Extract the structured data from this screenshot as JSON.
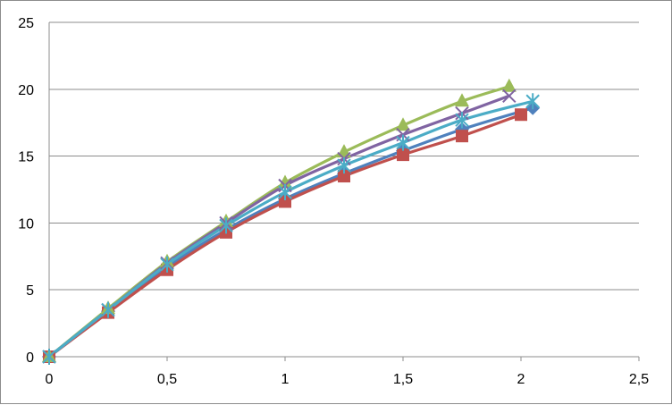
{
  "chart_data": {
    "type": "line",
    "title": "",
    "xlabel": "",
    "ylabel": "",
    "xlim": [
      0,
      2.5
    ],
    "ylim": [
      0,
      25
    ],
    "x_ticks": [
      "0",
      "0,5",
      "1",
      "1,5",
      "2",
      "2,5"
    ],
    "y_ticks": [
      "0",
      "5",
      "10",
      "15",
      "20",
      "25"
    ],
    "grid": "horizontal",
    "legend": "none",
    "series": [
      {
        "marker": "diamond",
        "color": "#4f81bd",
        "points": [
          [
            0,
            0
          ],
          [
            0.25,
            3.4
          ],
          [
            0.5,
            6.7
          ],
          [
            0.75,
            9.5
          ],
          [
            1,
            11.8
          ],
          [
            1.25,
            13.7
          ],
          [
            1.5,
            15.4
          ],
          [
            1.75,
            17.0
          ],
          [
            2.05,
            18.6
          ]
        ]
      },
      {
        "marker": "square",
        "color": "#c0504d",
        "points": [
          [
            0,
            0
          ],
          [
            0.25,
            3.3
          ],
          [
            0.5,
            6.5
          ],
          [
            0.75,
            9.3
          ],
          [
            1,
            11.6
          ],
          [
            1.25,
            13.5
          ],
          [
            1.5,
            15.1
          ],
          [
            1.75,
            16.5
          ],
          [
            2,
            18.1
          ]
        ]
      },
      {
        "marker": "triangle",
        "color": "#9bbb59",
        "points": [
          [
            0,
            0
          ],
          [
            0.25,
            3.6
          ],
          [
            0.5,
            7.1
          ],
          [
            0.75,
            10.1
          ],
          [
            1,
            13.0
          ],
          [
            1.25,
            15.3
          ],
          [
            1.5,
            17.3
          ],
          [
            1.75,
            19.1
          ],
          [
            1.95,
            20.2
          ]
        ]
      },
      {
        "marker": "x",
        "color": "#8064a2",
        "points": [
          [
            0,
            0
          ],
          [
            0.25,
            3.5
          ],
          [
            0.5,
            7.0
          ],
          [
            0.75,
            10.0
          ],
          [
            1,
            12.8
          ],
          [
            1.25,
            14.8
          ],
          [
            1.5,
            16.6
          ],
          [
            1.75,
            18.2
          ],
          [
            1.95,
            19.5
          ]
        ]
      },
      {
        "marker": "star",
        "color": "#4bacc6",
        "points": [
          [
            0,
            0
          ],
          [
            0.25,
            3.5
          ],
          [
            0.5,
            6.9
          ],
          [
            0.75,
            9.8
          ],
          [
            1,
            12.3
          ],
          [
            1.25,
            14.3
          ],
          [
            1.5,
            16.0
          ],
          [
            1.75,
            17.7
          ],
          [
            2.05,
            19.1
          ]
        ]
      }
    ]
  }
}
